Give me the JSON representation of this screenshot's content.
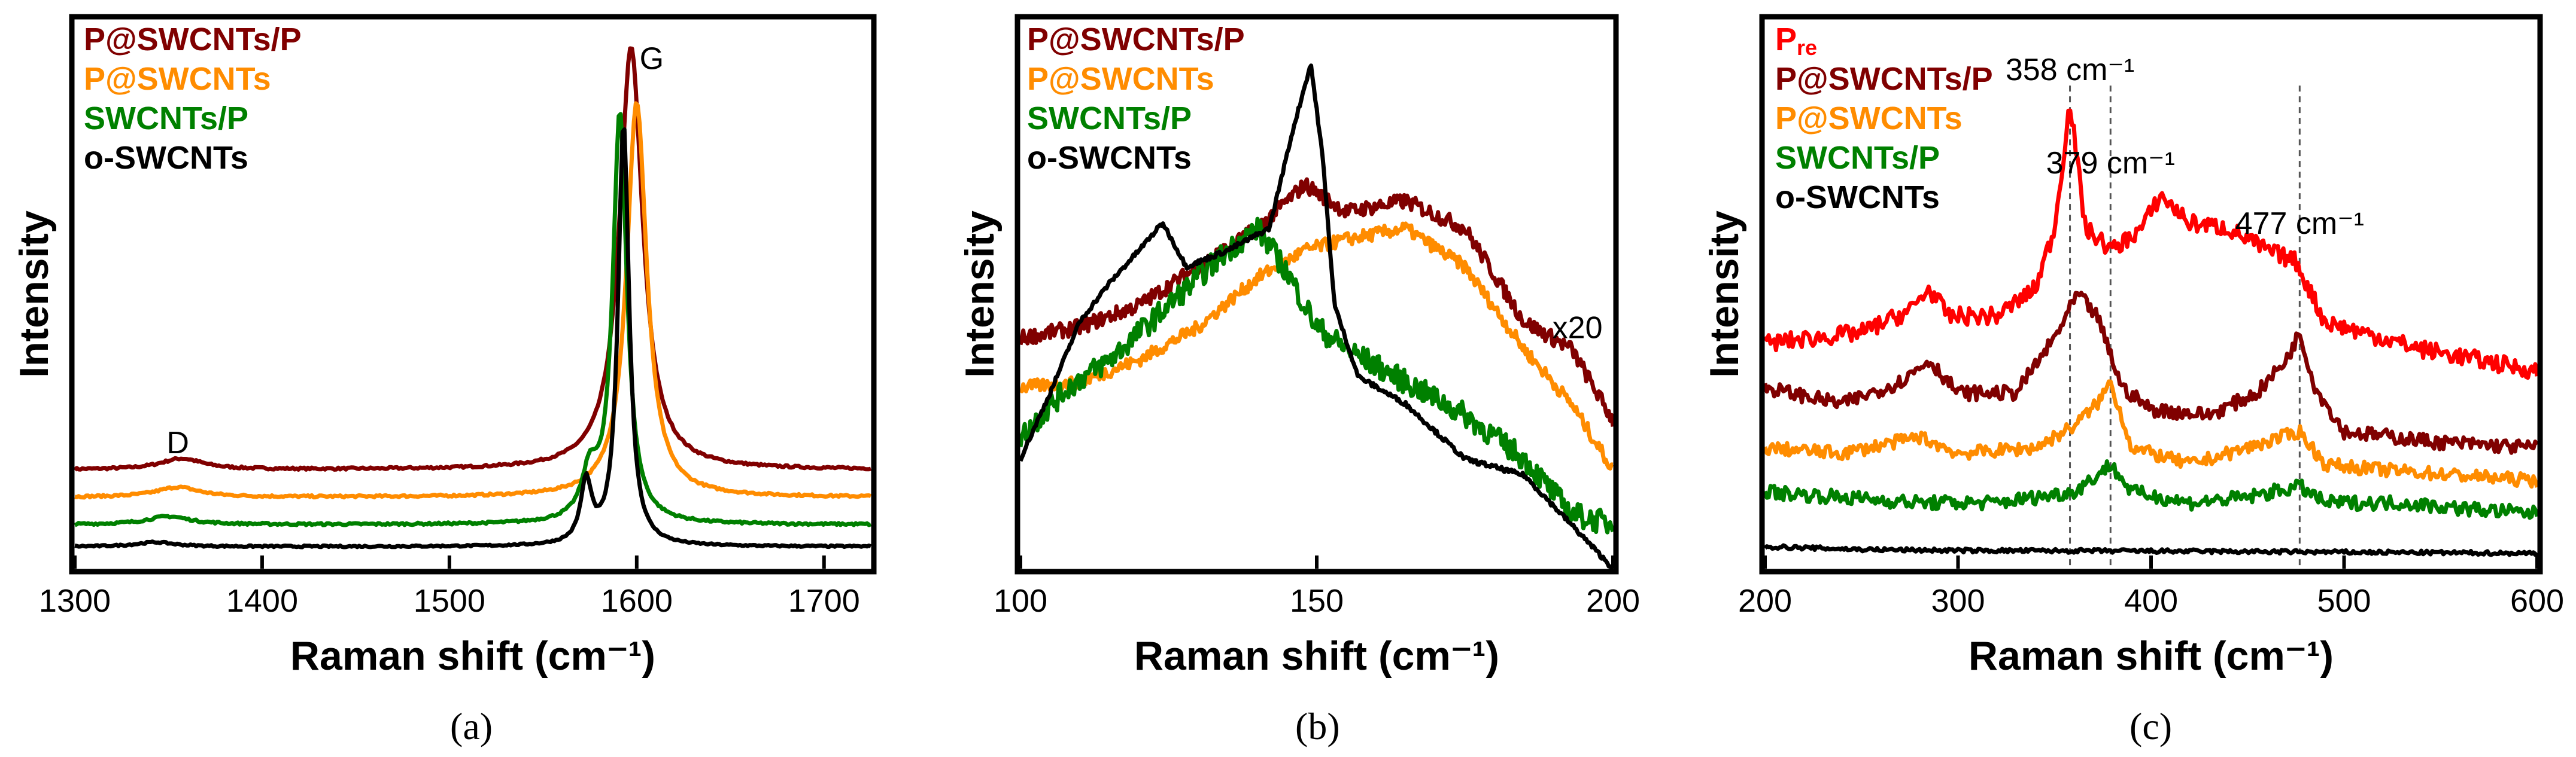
{
  "colors": {
    "P@SWCNTs/P": "#800000",
    "P@SWCNTs": "#ff8c00",
    "SWCNTs/P": "#008000",
    "o-SWCNTs": "#000000",
    "Pre": "#ff0000"
  },
  "chart_data": [
    {
      "type": "line",
      "panel": "a",
      "caption": "(a)",
      "xlabel": "Raman shift (cm⁻¹)",
      "ylabel": "Intensity",
      "xlim": [
        1300,
        1725
      ],
      "ylim": [
        0,
        100
      ],
      "xticks": [
        1300,
        1400,
        1500,
        1600,
        1700
      ],
      "legend": [
        "P@SWCNTs/P",
        "P@SWCNTs",
        "SWCNTs/P",
        "o-SWCNTs"
      ],
      "annotations": [
        {
          "text": "D",
          "x": 1355,
          "y": 21
        },
        {
          "text": "G",
          "x": 1608,
          "y": 91
        }
      ],
      "series": [
        {
          "name": "P@SWCNTs/P",
          "offset": 18,
          "noise": 0.2,
          "peaks": [
            [
              1357,
              2,
              28
            ],
            [
              1597,
              77,
              15
            ]
          ]
        },
        {
          "name": "P@SWCNTs",
          "offset": 13,
          "noise": 0.2,
          "peaks": [
            [
              1355,
              1.8,
              28
            ],
            [
              1600,
              72,
              13
            ]
          ]
        },
        {
          "name": "SWCNTs/P",
          "offset": 8,
          "noise": 0.2,
          "peaks": [
            [
              1350,
              1.5,
              28
            ],
            [
              1575,
              8,
              10
            ],
            [
              1591,
              75,
              9
            ]
          ]
        },
        {
          "name": "o-SWCNTs",
          "offset": 4,
          "noise": 0.15,
          "peaks": [
            [
              1343,
              0.8,
              25
            ],
            [
              1573,
              11,
              7
            ],
            [
              1593,
              77,
              7
            ]
          ]
        }
      ]
    },
    {
      "type": "line",
      "panel": "b",
      "caption": "(b)",
      "xlabel": "Raman shift (cm⁻¹)",
      "ylabel": "Intensity",
      "xlim": [
        100,
        200
      ],
      "ylim": [
        0,
        100
      ],
      "xticks": [
        100,
        150,
        200
      ],
      "legend": [
        "P@SWCNTs/P",
        "P@SWCNTs",
        "SWCNTs/P",
        "o-SWCNTs"
      ],
      "annotations": [
        {
          "text": "x20",
          "x": 194,
          "y": 42
        }
      ],
      "series": [
        {
          "name": "P@SWCNTs/P",
          "noise": 1.4,
          "points": [
            [
              100,
              42
            ],
            [
              110,
              44
            ],
            [
              120,
              48
            ],
            [
              130,
              55
            ],
            [
              140,
              62
            ],
            [
              148,
              70
            ],
            [
              155,
              65
            ],
            [
              165,
              67
            ],
            [
              175,
              62
            ],
            [
              185,
              45
            ],
            [
              193,
              40
            ],
            [
              200,
              27
            ]
          ]
        },
        {
          "name": "P@SWCNTs",
          "noise": 1.2,
          "points": [
            [
              100,
              33
            ],
            [
              110,
              34
            ],
            [
              120,
              38
            ],
            [
              130,
              44
            ],
            [
              140,
              53
            ],
            [
              148,
              58
            ],
            [
              155,
              60
            ],
            [
              165,
              62
            ],
            [
              175,
              55
            ],
            [
              185,
              40
            ],
            [
              193,
              30
            ],
            [
              200,
              18
            ]
          ]
        },
        {
          "name": "SWCNTs/P",
          "noise": 2.2,
          "points": [
            [
              100,
              24
            ],
            [
              108,
              33
            ],
            [
              115,
              38
            ],
            [
              125,
              48
            ],
            [
              135,
              58
            ],
            [
              140,
              62
            ],
            [
              145,
              54
            ],
            [
              150,
              44
            ],
            [
              155,
              40
            ],
            [
              165,
              34
            ],
            [
              175,
              28
            ],
            [
              185,
              20
            ],
            [
              193,
              10
            ],
            [
              200,
              8
            ]
          ]
        },
        {
          "name": "o-SWCNTs",
          "noise": 0.4,
          "points": [
            [
              100,
              20
            ],
            [
              105,
              32
            ],
            [
              110,
              45
            ],
            [
              115,
              52
            ],
            [
              120,
              58
            ],
            [
              124,
              63
            ],
            [
              128,
              55
            ],
            [
              135,
              58
            ],
            [
              142,
              62
            ],
            [
              146,
              80
            ],
            [
              149,
              92
            ],
            [
              151,
              75
            ],
            [
              153,
              48
            ],
            [
              157,
              35
            ],
            [
              165,
              30
            ],
            [
              175,
              20
            ],
            [
              185,
              17
            ],
            [
              193,
              8
            ],
            [
              200,
              0
            ]
          ]
        }
      ]
    },
    {
      "type": "line",
      "panel": "c",
      "caption": "(c)",
      "xlabel": "Raman shift (cm⁻¹)",
      "ylabel": "Intensity",
      "xlim": [
        200,
        600
      ],
      "ylim": [
        0,
        100
      ],
      "xticks": [
        200,
        300,
        400,
        500,
        600
      ],
      "legend": [
        "Pre",
        "P@SWCNTs/P",
        "P@SWCNTs",
        "SWCNTs/P",
        "o-SWCNTs"
      ],
      "legend_labels": {
        "Pre": "P",
        "Pre_sub": "re"
      },
      "annotations": [
        {
          "text": "358 cm⁻¹",
          "x": 358,
          "y": 89
        },
        {
          "text": "379 cm⁻¹",
          "x": 379,
          "y": 72
        },
        {
          "text": "477 cm⁻¹",
          "x": 477,
          "y": 61
        }
      ],
      "vlines": [
        358,
        379,
        477
      ],
      "series": [
        {
          "name": "Pre",
          "noise": 1.6,
          "points": [
            [
              200,
              41
            ],
            [
              250,
              43
            ],
            [
              275,
              47
            ],
            [
              285,
              51
            ],
            [
              295,
              46
            ],
            [
              320,
              46
            ],
            [
              340,
              51
            ],
            [
              350,
              62
            ],
            [
              358,
              85
            ],
            [
              366,
              62
            ],
            [
              380,
              58
            ],
            [
              395,
              62
            ],
            [
              405,
              68
            ],
            [
              420,
              63
            ],
            [
              440,
              62
            ],
            [
              460,
              58
            ],
            [
              475,
              56
            ],
            [
              490,
              45
            ],
            [
              510,
              43
            ],
            [
              540,
              40
            ],
            [
              570,
              38
            ],
            [
              600,
              36
            ]
          ]
        },
        {
          "name": "P@SWCNTs/P",
          "noise": 1.3,
          "points": [
            [
              200,
              33
            ],
            [
              240,
              30
            ],
            [
              270,
              34
            ],
            [
              285,
              38
            ],
            [
              300,
              32
            ],
            [
              330,
              32
            ],
            [
              350,
              42
            ],
            [
              362,
              50
            ],
            [
              372,
              46
            ],
            [
              385,
              33
            ],
            [
              400,
              29
            ],
            [
              430,
              28
            ],
            [
              455,
              32
            ],
            [
              470,
              38
            ],
            [
              477,
              43
            ],
            [
              485,
              33
            ],
            [
              500,
              25
            ],
            [
              550,
              23
            ],
            [
              600,
              22
            ]
          ]
        },
        {
          "name": "P@SWCNTs",
          "noise": 1.2,
          "points": [
            [
              200,
              22
            ],
            [
              240,
              21
            ],
            [
              280,
              24
            ],
            [
              300,
              21
            ],
            [
              340,
              22
            ],
            [
              360,
              26
            ],
            [
              372,
              30
            ],
            [
              379,
              34
            ],
            [
              390,
              22
            ],
            [
              420,
              19
            ],
            [
              450,
              22
            ],
            [
              477,
              25
            ],
            [
              490,
              19
            ],
            [
              520,
              18
            ],
            [
              560,
              17
            ],
            [
              600,
              16
            ]
          ]
        },
        {
          "name": "SWCNTs/P",
          "noise": 1.3,
          "points": [
            [
              200,
              14
            ],
            [
              240,
              13
            ],
            [
              280,
              12
            ],
            [
              320,
              12
            ],
            [
              360,
              14
            ],
            [
              372,
              17
            ],
            [
              379,
              19
            ],
            [
              390,
              14
            ],
            [
              420,
              12
            ],
            [
              450,
              13
            ],
            [
              477,
              15
            ],
            [
              490,
              12
            ],
            [
              530,
              12
            ],
            [
              560,
              11
            ],
            [
              600,
              10
            ]
          ]
        },
        {
          "name": "o-SWCNTs",
          "noise": 0.35,
          "points": [
            [
              200,
              4
            ],
            [
              250,
              3.5
            ],
            [
              300,
              3.3
            ],
            [
              400,
              3.2
            ],
            [
              500,
              3
            ],
            [
              600,
              2.8
            ]
          ]
        }
      ]
    }
  ]
}
